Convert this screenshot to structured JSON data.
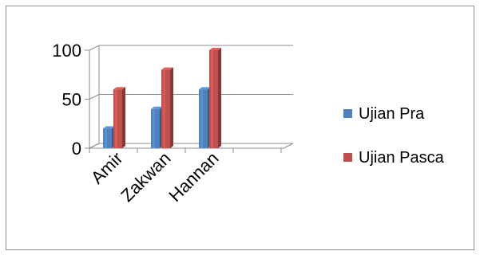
{
  "chart_data": {
    "type": "bar",
    "categories": [
      "Amir",
      "Zakwan",
      "Hannan"
    ],
    "series": [
      {
        "name": "Ujian Pra",
        "values": [
          20,
          40,
          60
        ],
        "color": "#4f81bd"
      },
      {
        "name": "Ujian Pasca",
        "values": [
          60,
          80,
          100
        ],
        "color": "#c0504d"
      }
    ],
    "ylim": [
      0,
      100
    ],
    "y_ticks": [
      0,
      50,
      100
    ],
    "legend_position": "right",
    "grid": true,
    "style": "3d-column"
  }
}
